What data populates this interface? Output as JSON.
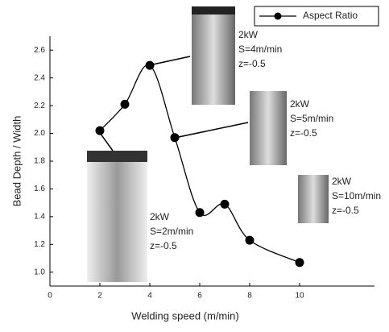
{
  "chart_data": {
    "type": "line",
    "x_label": "Welding speed (m/min)",
    "y_label": "Bead Depth / Width",
    "x": [
      2,
      3,
      4,
      5,
      6,
      7,
      8,
      10
    ],
    "series": [
      {
        "name": "Aspect Ratio",
        "color": "#000000",
        "values": [
          2.02,
          2.21,
          2.49,
          1.97,
          1.43,
          1.49,
          1.23,
          1.07
        ]
      }
    ],
    "xlim": [
      0,
      13
    ],
    "ylim": [
      0.9,
      2.7
    ],
    "xticks": [
      0,
      2,
      4,
      6,
      8,
      10
    ],
    "yticks": [
      {
        "value": 1.0,
        "label": "1.0"
      },
      1.2,
      1.4,
      1.6,
      1.8,
      {
        "value": 2.0,
        "label": "2.0"
      },
      2.2,
      2.4,
      2.6
    ],
    "legend": "top-right",
    "annotations": [
      {
        "lines": [
          "2kW",
          "S=4m/min",
          "z=-0.5"
        ]
      },
      {
        "lines": [
          "2kW",
          "S=5m/min",
          "z=-0.5"
        ]
      },
      {
        "lines": [
          "2kW",
          "S=10m/min",
          "z=-0.5"
        ]
      },
      {
        "lines": [
          "2kW",
          "S=2m/min",
          "z=-0.5"
        ]
      }
    ]
  }
}
